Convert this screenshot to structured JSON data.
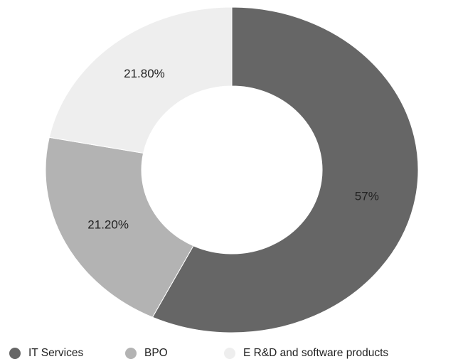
{
  "chart_data": {
    "type": "donut",
    "categories": [
      "IT Services",
      "BPO",
      "E R&D and software products"
    ],
    "values": [
      57,
      21.2,
      21.8
    ],
    "value_labels": [
      "57%",
      "21.20%",
      "21.80%"
    ],
    "colors": [
      "#666666",
      "#b3b3b3",
      "#eeeeee"
    ]
  }
}
